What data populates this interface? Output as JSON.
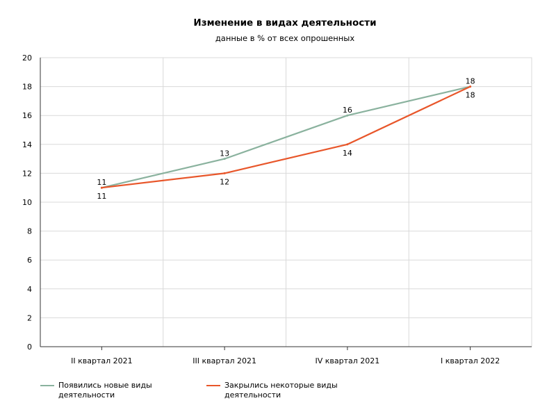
{
  "chart_data": {
    "type": "line",
    "title": "Изменение в видах деятельности",
    "subtitle": "данные в % от всех опрошенных",
    "categories": [
      "II квартал 2021",
      "III квартал 2021",
      "IV квартал 2021",
      "I квартал 2022"
    ],
    "series": [
      {
        "name": "Появились новые виды деятельности",
        "values": [
          11,
          13,
          16,
          18
        ],
        "color": "#8ab29e"
      },
      {
        "name": "Закрылись некоторые виды деятельности",
        "values": [
          11,
          12,
          14,
          18
        ],
        "color": "#e8562a"
      }
    ],
    "yticks": [
      "0",
      "2",
      "4",
      "6",
      "8",
      "10",
      "12",
      "14",
      "16",
      "18",
      "20"
    ],
    "ylim": [
      0,
      20
    ],
    "grid": true,
    "legend_position": "bottom-left"
  }
}
